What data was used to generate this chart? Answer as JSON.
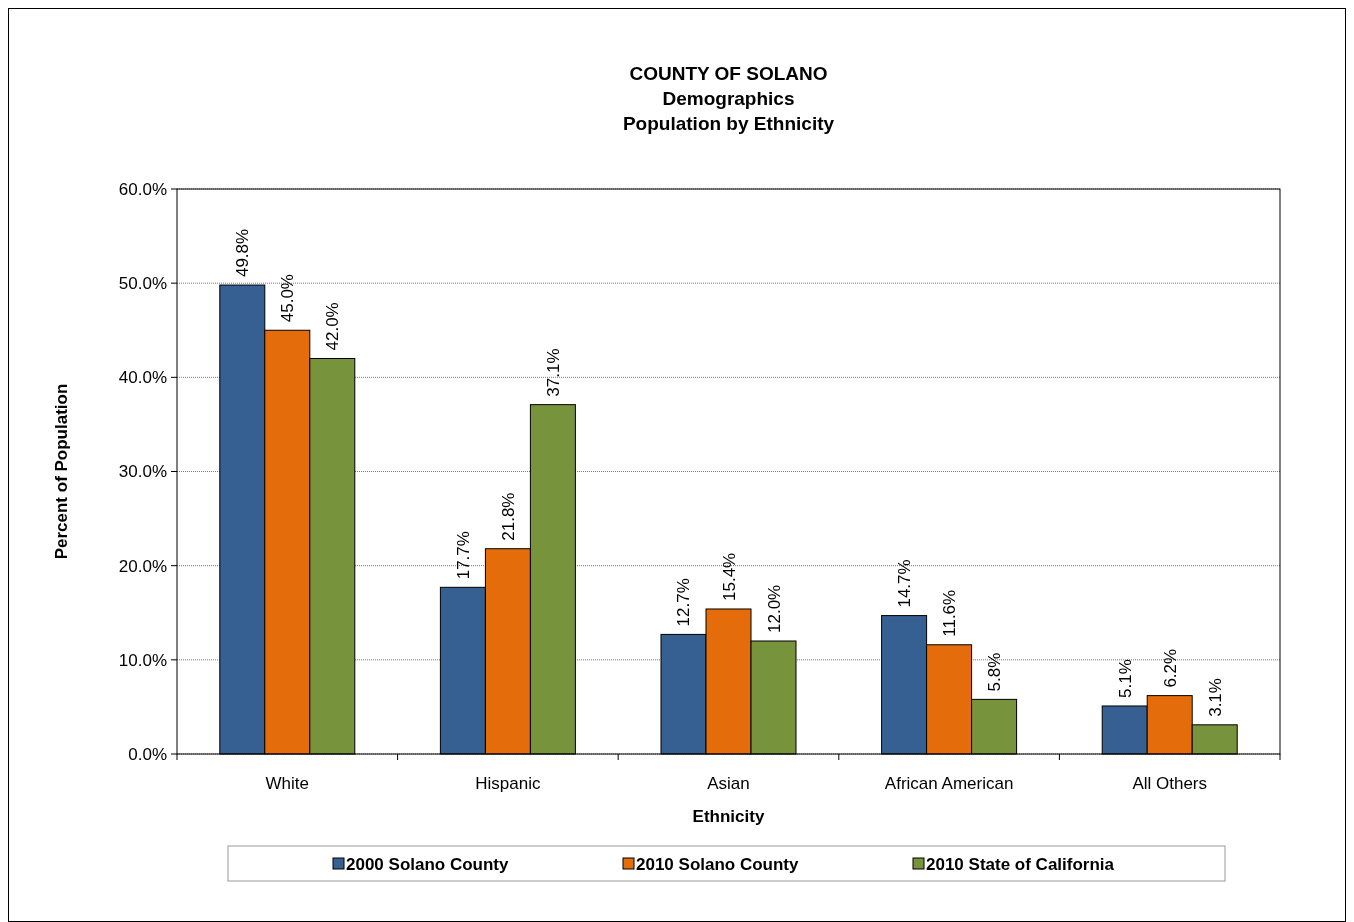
{
  "chart_data": {
    "type": "bar",
    "title": "COUNTY OF SOLANO",
    "subtitle": "Demographics\nPopulation by Ethnicity",
    "xlabel": "Ethnicity",
    "ylabel": "Percent of Population",
    "categories": [
      "White",
      "Hispanic",
      "Asian",
      "African American",
      "All Others"
    ],
    "series": [
      {
        "name": "2000 Solano County",
        "color": "#376092",
        "values": [
          49.8,
          17.7,
          12.7,
          14.7,
          5.1
        ],
        "value_labels": [
          "49.8%",
          "17.7%",
          "12.7%",
          "14.7%",
          "5.1%"
        ]
      },
      {
        "name": "2010 Solano County",
        "color": "#e46c0a",
        "values": [
          45.0,
          21.8,
          15.4,
          11.6,
          6.2
        ],
        "value_labels": [
          "45.0%",
          "21.8%",
          "15.4%",
          "11.6%",
          "6.2%"
        ]
      },
      {
        "name": "2010 State of California",
        "color": "#77933c",
        "values": [
          42.0,
          37.1,
          12.0,
          5.8,
          3.1
        ],
        "value_labels": [
          "42.0%",
          "37.1%",
          "12.0%",
          "5.8%",
          "3.1%"
        ]
      }
    ],
    "ylim": [
      0,
      60
    ],
    "yticks": [
      {
        "value": 0,
        "label": "0.0%"
      },
      {
        "value": 10,
        "label": "10.0%"
      },
      {
        "value": 20,
        "label": "20.0%"
      },
      {
        "value": 30,
        "label": "30.0%"
      },
      {
        "value": 40,
        "label": "40.0%"
      },
      {
        "value": 50,
        "label": "50.0%"
      },
      {
        "value": 60,
        "label": "60.0%"
      }
    ],
    "grid": "y",
    "legend": "bottom"
  }
}
